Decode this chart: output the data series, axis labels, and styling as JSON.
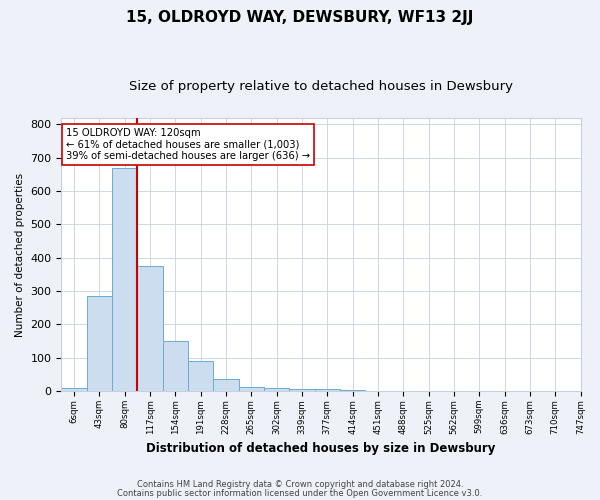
{
  "title": "15, OLDROYD WAY, DEWSBURY, WF13 2JJ",
  "subtitle": "Size of property relative to detached houses in Dewsbury",
  "xlabel": "Distribution of detached houses by size in Dewsbury",
  "ylabel": "Number of detached properties",
  "footer_line1": "Contains HM Land Registry data © Crown copyright and database right 2024.",
  "footer_line2": "Contains public sector information licensed under the Open Government Licence v3.0.",
  "bin_labels": [
    "6sqm",
    "43sqm",
    "80sqm",
    "117sqm",
    "154sqm",
    "191sqm",
    "228sqm",
    "265sqm",
    "302sqm",
    "339sqm",
    "377sqm",
    "414sqm",
    "451sqm",
    "488sqm",
    "525sqm",
    "562sqm",
    "599sqm",
    "636sqm",
    "673sqm",
    "710sqm",
    "747sqm"
  ],
  "bar_values": [
    8,
    285,
    670,
    375,
    150,
    90,
    35,
    12,
    10,
    7,
    5,
    4,
    0,
    0,
    0,
    0,
    0,
    0,
    0,
    0
  ],
  "bar_color": "#ccddf0",
  "bar_edge_color": "#6aaad4",
  "red_line_x": 3.0,
  "red_line_color": "#cc0000",
  "annotation_text": "15 OLDROYD WAY: 120sqm\n← 61% of detached houses are smaller (1,003)\n39% of semi-detached houses are larger (636) →",
  "annotation_box_color": "#ffffff",
  "annotation_box_edge": "#cc0000",
  "ylim": [
    0,
    820
  ],
  "yticks": [
    0,
    100,
    200,
    300,
    400,
    500,
    600,
    700,
    800
  ],
  "background_color": "#eef2f8",
  "plot_bg_color": "#ffffff",
  "grid_color": "#c8d0e0",
  "title_fontsize": 11,
  "subtitle_fontsize": 9.5
}
